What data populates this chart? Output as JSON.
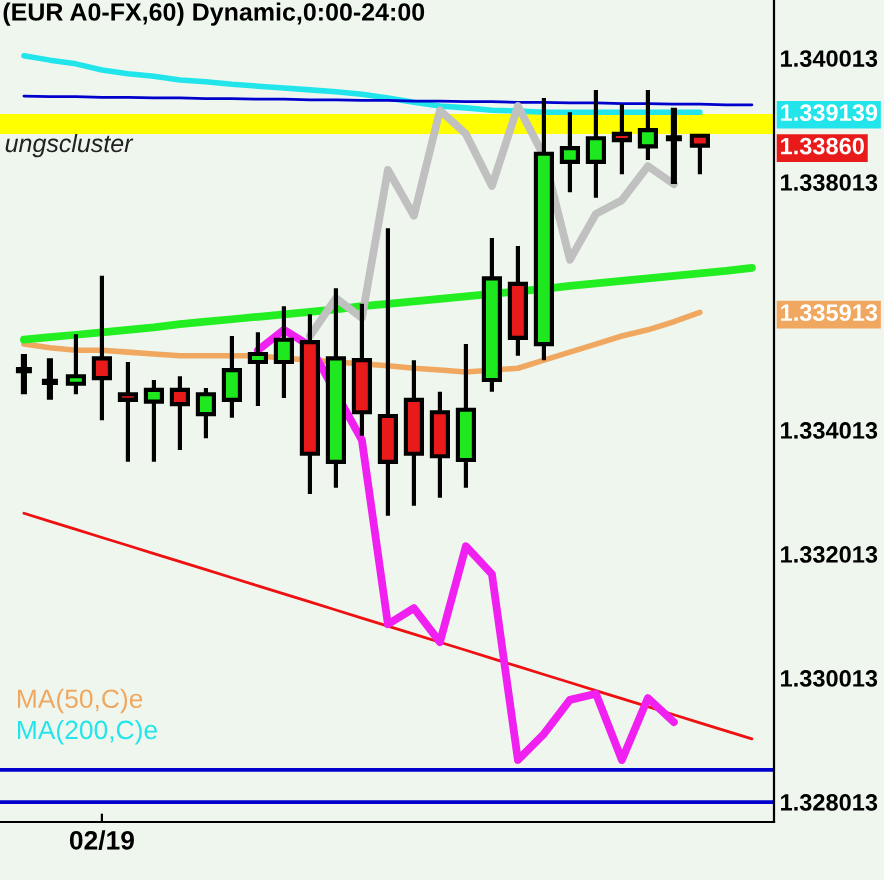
{
  "chart_data": {
    "type": "candlestick",
    "title": "(EUR A0-FX,60) Dynamic,0:00-24:00",
    "categories": [
      null,
      null,
      null,
      "02/19",
      null,
      null,
      null,
      null,
      null,
      null,
      null,
      null,
      null,
      null,
      null,
      null,
      null,
      null,
      null,
      null,
      null,
      null,
      null,
      null,
      null,
      null,
      null,
      null,
      null
    ],
    "ohlc": [
      [
        1.33498,
        1.33524,
        1.33459,
        1.33498
      ],
      [
        1.33479,
        1.33517,
        1.3345,
        1.33479
      ],
      [
        1.33476,
        1.33556,
        1.33459,
        1.33488
      ],
      [
        1.33517,
        1.3365,
        1.33417,
        1.33485
      ],
      [
        1.33459,
        1.33511,
        1.3335,
        1.3345
      ],
      [
        1.33447,
        1.33482,
        1.3335,
        1.33466
      ],
      [
        1.33466,
        1.33488,
        1.33369,
        1.33443
      ],
      [
        1.33427,
        1.33469,
        1.33388,
        1.33459
      ],
      [
        1.3345,
        1.33553,
        1.33421,
        1.33498
      ],
      [
        1.33511,
        1.33559,
        1.3344,
        1.33524
      ],
      [
        1.33511,
        1.33601,
        1.33453,
        1.33547
      ],
      [
        1.33543,
        1.33588,
        1.33298,
        1.33363
      ],
      [
        1.3335,
        1.3363,
        1.33308,
        1.33517
      ],
      [
        1.33514,
        1.33605,
        1.33392,
        1.3343
      ],
      [
        1.33424,
        1.33727,
        1.33263,
        1.3335
      ],
      [
        1.3345,
        1.33514,
        1.33279,
        1.33363
      ],
      [
        1.3343,
        1.33463,
        1.33292,
        1.33359
      ],
      [
        1.33353,
        1.3354,
        1.33308,
        1.33434
      ],
      [
        1.33482,
        1.33711,
        1.33463,
        1.33646
      ],
      [
        1.33637,
        1.33698,
        1.33521,
        1.3355
      ],
      [
        1.3354,
        1.33937,
        1.33514,
        1.33847
      ],
      [
        1.33834,
        1.33914,
        1.33785,
        1.33856
      ],
      [
        1.33834,
        1.3395,
        1.33776,
        1.33872
      ],
      [
        1.33879,
        1.33927,
        1.33814,
        1.33869
      ],
      [
        1.33859,
        1.3395,
        1.33837,
        1.33885
      ],
      [
        1.33872,
        1.33921,
        1.33798,
        1.33872
      ],
      [
        1.33876,
        1.33876,
        1.33814,
        1.3386
      ],
      null,
      null
    ],
    "colors": [
      "#000000",
      "#000000",
      "#1ee81e",
      "#e81a1a",
      "#e81a1a",
      "#1ee81e",
      "#e81a1a",
      "#1ee81e",
      "#1ee81e",
      "#1ee81e",
      "#1ee81e",
      "#e81a1a",
      "#1ee81e",
      "#e81a1a",
      "#e81a1a",
      "#e81a1a",
      "#e81a1a",
      "#1ee81e",
      "#1ee81e",
      "#e81a1a",
      "#1ee81e",
      "#1ee81e",
      "#1ee81e",
      "#e81a1a",
      "#1ee81e",
      "#000000",
      "#e81a1a",
      null,
      null
    ],
    "series": [
      {
        "name": "MA(50,C)e",
        "type": "line",
        "color": "#f0a860",
        "values": [
          1.3354,
          1.33534,
          1.3353,
          1.3353,
          1.33527,
          1.33524,
          1.33521,
          1.33521,
          1.33521,
          1.33521,
          1.33517,
          null,
          null,
          null,
          1.33505,
          1.33501,
          1.33498,
          1.33495,
          null,
          1.33501,
          1.33514,
          1.33527,
          1.3354,
          1.33553,
          1.33563,
          1.33576,
          1.33591,
          null,
          null
        ]
      },
      {
        "name": "MA(200,C)e",
        "type": "line",
        "color": "#22e5ec",
        "values": [
          1.34005,
          1.33998,
          1.33992,
          1.33982,
          1.33976,
          1.33972,
          1.33966,
          1.33963,
          1.33959,
          1.33956,
          1.33953,
          1.3395,
          1.33947,
          1.33943,
          1.33937,
          1.3393,
          1.33924,
          1.33921,
          1.33917,
          1.33916,
          1.33914,
          1.33914,
          1.33914,
          1.33914,
          1.33914,
          1.33914,
          1.33914,
          null,
          null
        ]
      },
      {
        "type": "line",
        "color": "#0000cc",
        "values": [
          1.3394,
          1.33939,
          1.33939,
          1.33938,
          1.33938,
          1.33937,
          1.33937,
          1.33936,
          1.33936,
          1.33935,
          1.33935,
          1.33934,
          1.33934,
          1.33933,
          1.33933,
          1.33932,
          1.33932,
          1.33931,
          1.33931,
          1.3393,
          1.3393,
          1.33929,
          1.33929,
          1.33928,
          1.33928,
          1.33927,
          1.33927,
          1.33926,
          1.33926
        ]
      },
      {
        "type": "line",
        "color": "#22ee22",
        "values": [
          1.33547,
          1.33551,
          1.33555,
          1.33559,
          1.33563,
          1.33567,
          1.33572,
          1.33576,
          1.3358,
          1.33584,
          1.33588,
          1.33592,
          1.33596,
          1.33601,
          1.33605,
          1.33609,
          1.33613,
          1.33617,
          1.33621,
          null,
          1.33629,
          1.33634,
          1.33638,
          1.33642,
          1.33646,
          1.3365,
          1.33654,
          1.33658,
          1.33663
        ]
      },
      {
        "type": "line",
        "color": "#ee1111",
        "values": [
          1.33267,
          1.33254,
          1.33241,
          1.33228,
          1.33215,
          1.33202,
          1.33189,
          1.33176,
          1.33163,
          1.3315,
          1.33137,
          1.33124,
          1.33111,
          1.33098,
          1.33085,
          1.33072,
          1.33059,
          1.33046,
          1.33033,
          1.3302,
          1.33007,
          1.32994,
          1.32981,
          1.32968,
          1.32955,
          1.32942,
          1.32929,
          1.32916,
          1.32903
        ]
      },
      {
        "type": "line",
        "color": "#c0c0c0",
        "values": [
          null,
          null,
          null,
          null,
          null,
          null,
          null,
          null,
          null,
          null,
          null,
          1.33553,
          1.33614,
          1.33582,
          1.33821,
          1.33747,
          1.33917,
          1.33879,
          1.33795,
          1.33924,
          1.33843,
          1.33676,
          1.3375,
          1.33772,
          1.33827,
          1.33798,
          null,
          null,
          null
        ]
      },
      {
        "type": "line",
        "color": "#f020f0",
        "values": [
          null,
          null,
          null,
          null,
          null,
          null,
          null,
          null,
          null,
          1.3353,
          1.33563,
          1.33537,
          null,
          1.33385,
          1.33088,
          1.33114,
          1.33059,
          1.33214,
          1.33169,
          1.32869,
          1.32911,
          1.32966,
          1.32976,
          1.32869,
          1.32969,
          1.3293,
          null,
          null,
          null
        ]
      }
    ],
    "bands": [
      {
        "axis": "y",
        "from": 1.33879,
        "to": 1.33911,
        "label": "ungscluster",
        "color": "#ffff00"
      }
    ],
    "ref_lines": [
      {
        "axis": "y",
        "value": 1.32853,
        "color": "#0000cc"
      },
      {
        "axis": "y",
        "value": 1.32801,
        "color": "#0000cc"
      }
    ],
    "ylim": [
      1.32769,
      1.34095
    ],
    "yticks": [
      {
        "value": 1.328013,
        "label": "1.328013"
      },
      {
        "value": 1.330013,
        "label": "1.330013"
      },
      {
        "value": 1.332013,
        "label": "1.332013"
      },
      {
        "value": 1.334013,
        "label": "1.334013"
      },
      {
        "value": 1.335913,
        "label": "1.335913"
      },
      {
        "value": 1.338013,
        "label": "1.338013"
      },
      {
        "value": 1.3386,
        "label": "1.33860"
      },
      {
        "value": 1.339139,
        "label": "1.339139"
      },
      {
        "value": 1.340013,
        "label": "1.340013"
      }
    ],
    "legend": "bottom left"
  }
}
